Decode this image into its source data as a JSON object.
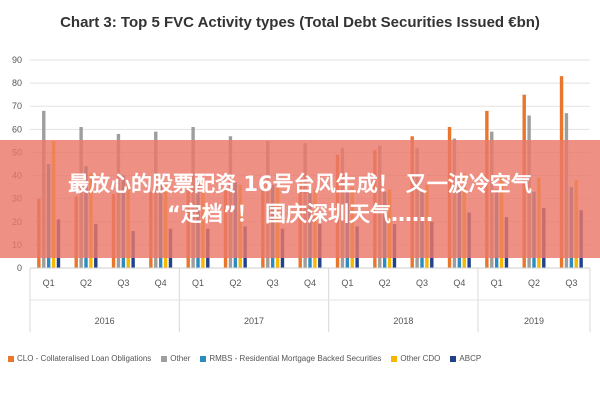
{
  "chart_data": {
    "type": "bar",
    "title": "Chart 3: Top 5 FVC Activity types (Total Debt Securities Issued €bn)",
    "xlabel": "",
    "ylabel": "",
    "ylim": [
      0,
      90
    ],
    "yticks": [
      0,
      10,
      20,
      30,
      40,
      50,
      60,
      70,
      80,
      90
    ],
    "grid": true,
    "legend_position": "bottom",
    "categories": [
      "Q1",
      "Q2",
      "Q3",
      "Q4",
      "Q1",
      "Q2",
      "Q3",
      "Q4",
      "Q1",
      "Q2",
      "Q3",
      "Q4",
      "Q1",
      "Q2",
      "Q3"
    ],
    "year_groups": [
      {
        "label": "2016",
        "count": 4
      },
      {
        "label": "2017",
        "count": 4
      },
      {
        "label": "2018",
        "count": 4
      },
      {
        "label": "2019",
        "count": 3
      }
    ],
    "series": [
      {
        "name": "CLO - Collateralised Loan Obligations",
        "color": "#E8762C",
        "values": [
          30,
          31,
          32,
          33,
          34,
          35,
          37,
          40,
          49,
          51,
          57,
          61,
          68,
          75,
          83
        ]
      },
      {
        "name": "Other",
        "color": "#9E9E9E",
        "values": [
          68,
          61,
          58,
          59,
          61,
          57,
          55,
          54,
          52,
          53,
          52,
          56,
          59,
          66,
          67
        ]
      },
      {
        "name": "RMBS - Residential Mortgage Backed Securities",
        "color": "#2E8BC0",
        "values": [
          45,
          44,
          40,
          38,
          37,
          37,
          36,
          35,
          34,
          33,
          33,
          35,
          34,
          33,
          35
        ]
      },
      {
        "name": "Other CDO",
        "color": "#F5B700",
        "values": [
          55,
          41,
          37,
          36,
          37,
          36,
          35,
          34,
          35,
          34,
          36,
          41,
          40,
          39,
          38
        ]
      },
      {
        "name": "ABCP",
        "color": "#23408E",
        "values": [
          21,
          19,
          16,
          17,
          17,
          18,
          17,
          19,
          18,
          19,
          20,
          24,
          22,
          26,
          25
        ]
      }
    ]
  },
  "overlay": {
    "line1": "最放心的股票配资 16号台风生成！ 又一波冷空气",
    "line2": "“定档”！ 国庆深圳天气……"
  }
}
